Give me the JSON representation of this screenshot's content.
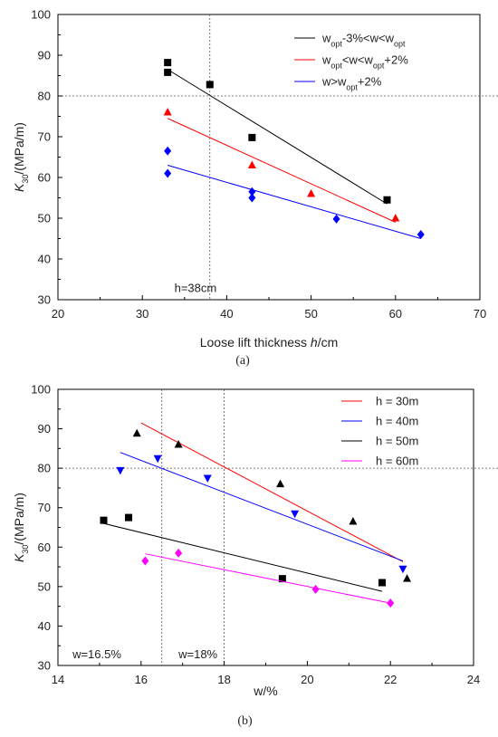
{
  "chart_data": [
    {
      "type": "scatter",
      "panel_label": "(a)",
      "xlabel_prefix": "Loose lift thickness ",
      "xlabel_var": "h",
      "xlabel_suffix": "/cm",
      "ylabel_var": "K",
      "ylabel_sub": "30",
      "ylabel_suffix": "/(MPa/m)",
      "xlim": [
        20,
        70
      ],
      "ylim": [
        30,
        100
      ],
      "xticks": [
        "20",
        "30",
        "40",
        "50",
        "60",
        "70"
      ],
      "yticks": [
        "30",
        "40",
        "50",
        "60",
        "70",
        "80",
        "90",
        "100"
      ],
      "grid": false,
      "legend_position": "top-right",
      "vlines": [
        38
      ],
      "hlines": [
        80
      ],
      "annotations": [
        {
          "text": "h=38cm",
          "x": 33.8,
          "y": 33
        }
      ],
      "series": [
        {
          "legend": {
            "parts": [
              [
                "w",
                ""
              ],
              [
                "opt",
                "sub"
              ],
              [
                "-3%<w<w",
                ""
              ],
              [
                "opt",
                "sub"
              ]
            ]
          },
          "color": "#000000",
          "marker": "square",
          "x": [
            33,
            33,
            38,
            43,
            59
          ],
          "y": [
            88.2,
            85.8,
            82.8,
            69.8,
            54.5
          ],
          "fit": {
            "x": [
              33,
              59
            ],
            "y": [
              86.5,
              53.5
            ]
          }
        },
        {
          "legend": {
            "parts": [
              [
                "w",
                ""
              ],
              [
                "opt",
                "sub"
              ],
              [
                "<w<w",
                ""
              ],
              [
                "opt",
                "sub"
              ],
              [
                "+2%",
                ""
              ]
            ]
          },
          "color": "#ff0000",
          "marker": "triangle-up",
          "x": [
            33,
            43,
            50,
            60
          ],
          "y": [
            76,
            63,
            56,
            50
          ],
          "fit": {
            "x": [
              33,
              60
            ],
            "y": [
              74.5,
              49
            ]
          }
        },
        {
          "legend": {
            "parts": [
              [
                "w>w",
                ""
              ],
              [
                "opt",
                "sub"
              ],
              [
                "+2%",
                ""
              ]
            ]
          },
          "color": "#0000ff",
          "marker": "diamond",
          "x": [
            33,
            33,
            43,
            43,
            53,
            63
          ],
          "y": [
            66.5,
            61,
            56.5,
            55,
            49.8,
            46
          ],
          "fit": {
            "x": [
              33,
              63
            ],
            "y": [
              63,
              45
            ]
          }
        }
      ]
    },
    {
      "type": "scatter",
      "panel_label": "(b)",
      "xlabel_prefix": "w/%",
      "xlabel_var": "",
      "xlabel_suffix": "",
      "ylabel_var": "K",
      "ylabel_sub": "30",
      "ylabel_suffix": "/(MPa/m)",
      "xlim": [
        14,
        24
      ],
      "ylim": [
        30,
        100
      ],
      "xticks": [
        "14",
        "16",
        "18",
        "20",
        "22",
        "24"
      ],
      "yticks": [
        "30",
        "40",
        "50",
        "60",
        "70",
        "80",
        "90",
        "100"
      ],
      "grid": false,
      "legend_position": "top-right",
      "vlines": [
        16.5,
        18
      ],
      "hlines": [
        80
      ],
      "annotations": [
        {
          "text": "w=16.5%",
          "x": 14.35,
          "y": 33
        },
        {
          "text": "w=18%",
          "x": 16.9,
          "y": 33
        }
      ],
      "series": [
        {
          "legend": {
            "parts": [
              [
                "h = 30m",
                ""
              ]
            ]
          },
          "color": "#ff0000",
          "marker": "triangle-up",
          "marker_color": "#000000",
          "x": [
            15.9,
            16.9,
            19.35,
            21.1,
            22.4
          ],
          "y": [
            88.8,
            86,
            76,
            66.5,
            52
          ],
          "fit": {
            "x": [
              16,
              22.3
            ],
            "y": [
              91.5,
              56.3
            ]
          }
        },
        {
          "legend": {
            "parts": [
              [
                "h = 40m",
                ""
              ]
            ]
          },
          "color": "#0000ff",
          "marker": "triangle-down",
          "x": [
            15.5,
            16.4,
            17.6,
            19.7,
            22.3
          ],
          "y": [
            79.5,
            82.5,
            77.5,
            68.5,
            54.5
          ],
          "fit": {
            "x": [
              15.5,
              22.3
            ],
            "y": [
              84,
              56.5
            ]
          }
        },
        {
          "legend": {
            "parts": [
              [
                "h = 50m",
                ""
              ]
            ]
          },
          "color": "#000000",
          "marker": "square",
          "x": [
            15.1,
            15.7,
            19.4,
            21.8
          ],
          "y": [
            66.8,
            67.5,
            52,
            51
          ],
          "fit": {
            "x": [
              15.1,
              21.8
            ],
            "y": [
              66,
              48.8
            ]
          }
        },
        {
          "legend": {
            "parts": [
              [
                "h = 60m",
                ""
              ]
            ]
          },
          "color": "#ff00ff",
          "marker": "diamond",
          "x": [
            16.1,
            16.9,
            20.2,
            22
          ],
          "y": [
            56.5,
            58.5,
            49.3,
            45.8
          ],
          "fit": {
            "x": [
              16.1,
              22
            ],
            "y": [
              58.3,
              45.8
            ]
          }
        }
      ]
    }
  ]
}
